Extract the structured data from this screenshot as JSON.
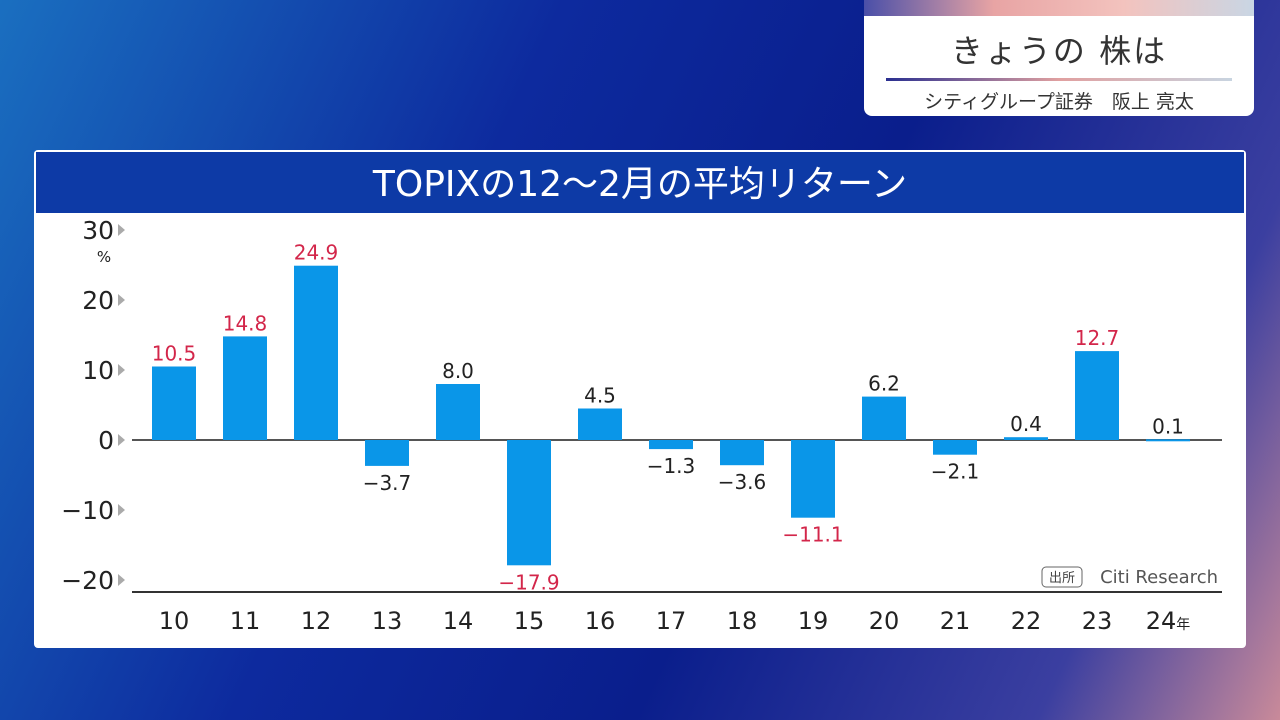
{
  "caption": {
    "title": "きょうの 株は",
    "subtitle": "シティグループ証券　阪上 亮太"
  },
  "chart_data": {
    "type": "bar",
    "title": "TOPIXの12〜2月の平均リターン",
    "ylabel": "%",
    "xlabel_suffix": "年",
    "ylim": [
      -20,
      30
    ],
    "yticks": [
      30,
      20,
      10,
      0,
      -10,
      -20
    ],
    "ytick_labels": [
      "30",
      "20",
      "10",
      "0",
      "−10",
      "−20"
    ],
    "categories": [
      "10",
      "11",
      "12",
      "13",
      "14",
      "15",
      "16",
      "17",
      "18",
      "19",
      "20",
      "21",
      "22",
      "23",
      "24年"
    ],
    "values": [
      10.5,
      14.8,
      24.9,
      -3.7,
      8.0,
      -17.9,
      4.5,
      -1.3,
      -3.6,
      -11.1,
      6.2,
      -2.1,
      0.4,
      12.7,
      0.1
    ],
    "labels": [
      "10.5",
      "14.8",
      "24.9",
      "−3.7",
      "8.0",
      "−17.9",
      "4.5",
      "−1.3",
      "−3.6",
      "−11.1",
      "6.2",
      "−2.1",
      "0.4",
      "12.7",
      "0.1"
    ],
    "highlight": [
      true,
      true,
      true,
      false,
      false,
      true,
      false,
      false,
      false,
      true,
      false,
      false,
      false,
      true,
      false
    ],
    "source_tag": "出所",
    "source": "Citi Research",
    "colors": {
      "bar": "#0a96e8",
      "highlight_label": "#d3264a",
      "label": "#222"
    }
  }
}
